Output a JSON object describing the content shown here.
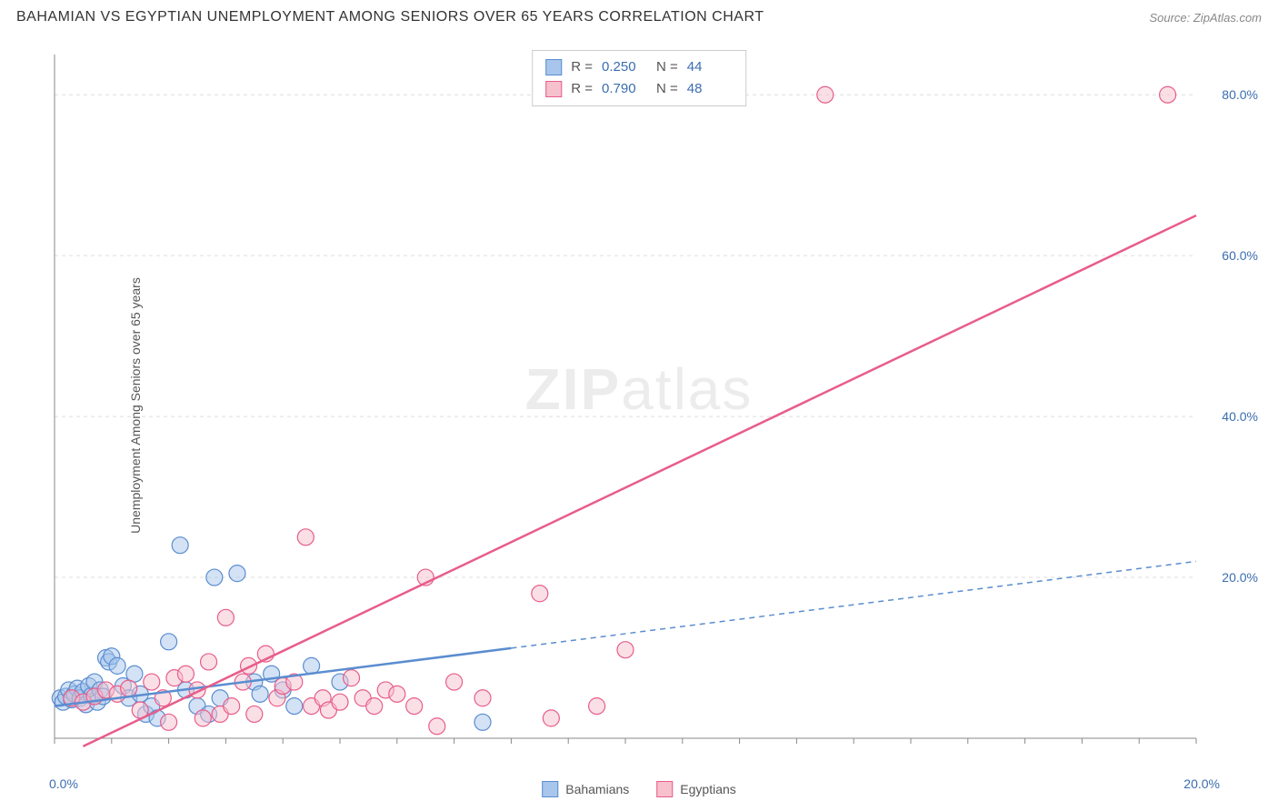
{
  "header": {
    "title": "BAHAMIAN VS EGYPTIAN UNEMPLOYMENT AMONG SENIORS OVER 65 YEARS CORRELATION CHART",
    "source": "Source: ZipAtlas.com"
  },
  "ylabel": "Unemployment Among Seniors over 65 years",
  "watermark": {
    "zip": "ZIP",
    "atlas": "atlas"
  },
  "chart": {
    "type": "scatter",
    "background_color": "#ffffff",
    "grid_color": "#dddddd",
    "axis_color": "#888888",
    "xlim": [
      0,
      20
    ],
    "ylim": [
      0,
      85
    ],
    "xticks": [
      0,
      20
    ],
    "xtick_labels": [
      "0.0%",
      "20.0%"
    ],
    "yticks": [
      20,
      40,
      60,
      80
    ],
    "ytick_labels": [
      "20.0%",
      "40.0%",
      "60.0%",
      "80.0%"
    ],
    "x_minor_ticks": [
      0,
      1,
      2,
      3,
      4,
      5,
      6,
      7,
      8,
      9,
      10,
      11,
      12,
      13,
      14,
      15,
      16,
      17,
      18,
      19,
      20
    ],
    "marker_radius": 9,
    "marker_opacity": 0.5,
    "line_width_solid": 2.5,
    "line_width_dashed": 1.5
  },
  "series": [
    {
      "name": "Bahamians",
      "fill_color": "#a8c6ec",
      "stroke_color": "#5a8dd0",
      "R": "0.250",
      "N": "44",
      "trend": {
        "x1": 0,
        "y1": 4,
        "x2": 20,
        "y2": 22,
        "solid_until_x": 8
      },
      "points": [
        [
          0.1,
          5
        ],
        [
          0.15,
          4.5
        ],
        [
          0.2,
          5.2
        ],
        [
          0.25,
          6
        ],
        [
          0.3,
          4.8
        ],
        [
          0.35,
          5.5
        ],
        [
          0.4,
          6.2
        ],
        [
          0.45,
          5
        ],
        [
          0.5,
          5.8
        ],
        [
          0.55,
          4.2
        ],
        [
          0.6,
          6.5
        ],
        [
          0.65,
          5.3
        ],
        [
          0.7,
          7
        ],
        [
          0.75,
          4.5
        ],
        [
          0.8,
          6
        ],
        [
          0.85,
          5.2
        ],
        [
          0.9,
          10
        ],
        [
          0.95,
          9.5
        ],
        [
          1,
          10.2
        ],
        [
          1.1,
          9
        ],
        [
          1.2,
          6.5
        ],
        [
          1.3,
          5
        ],
        [
          1.4,
          8
        ],
        [
          1.5,
          5.5
        ],
        [
          1.6,
          3
        ],
        [
          1.7,
          4
        ],
        [
          1.8,
          2.5
        ],
        [
          2,
          12
        ],
        [
          2.2,
          24
        ],
        [
          2.3,
          6
        ],
        [
          2.5,
          4
        ],
        [
          2.7,
          3
        ],
        [
          2.8,
          20
        ],
        [
          2.9,
          5
        ],
        [
          3.2,
          20.5
        ],
        [
          3.5,
          7
        ],
        [
          3.6,
          5.5
        ],
        [
          3.8,
          8
        ],
        [
          4,
          6
        ],
        [
          4.2,
          4
        ],
        [
          4.5,
          9
        ],
        [
          5,
          7
        ],
        [
          7.5,
          2
        ]
      ]
    },
    {
      "name": "Egyptians",
      "fill_color": "#f6c0cd",
      "stroke_color": "#e85d8a",
      "R": "0.790",
      "N": "48",
      "trend": {
        "x1": 0.5,
        "y1": -1,
        "x2": 20,
        "y2": 65,
        "solid_until_x": 20
      },
      "points": [
        [
          0.3,
          5
        ],
        [
          0.5,
          4.5
        ],
        [
          0.7,
          5.2
        ],
        [
          0.9,
          6
        ],
        [
          1.1,
          5.5
        ],
        [
          1.3,
          6.2
        ],
        [
          1.5,
          3.5
        ],
        [
          1.7,
          7
        ],
        [
          1.9,
          5
        ],
        [
          2,
          2
        ],
        [
          2.1,
          7.5
        ],
        [
          2.3,
          8
        ],
        [
          2.5,
          6
        ],
        [
          2.6,
          2.5
        ],
        [
          2.7,
          9.5
        ],
        [
          2.9,
          3
        ],
        [
          3,
          15
        ],
        [
          3.1,
          4
        ],
        [
          3.3,
          7
        ],
        [
          3.4,
          9
        ],
        [
          3.5,
          3
        ],
        [
          3.7,
          10.5
        ],
        [
          3.9,
          5
        ],
        [
          4,
          6.5
        ],
        [
          4.2,
          7
        ],
        [
          4.4,
          25
        ],
        [
          4.5,
          4
        ],
        [
          4.7,
          5
        ],
        [
          4.8,
          3.5
        ],
        [
          5,
          4.5
        ],
        [
          5.2,
          7.5
        ],
        [
          5.4,
          5
        ],
        [
          5.6,
          4
        ],
        [
          5.8,
          6
        ],
        [
          6,
          5.5
        ],
        [
          6.3,
          4
        ],
        [
          6.5,
          20
        ],
        [
          6.7,
          1.5
        ],
        [
          7,
          7
        ],
        [
          7.5,
          5
        ],
        [
          8.5,
          18
        ],
        [
          8.7,
          2.5
        ],
        [
          9.5,
          4
        ],
        [
          10,
          11
        ],
        [
          13.5,
          80
        ],
        [
          19.5,
          80
        ]
      ]
    }
  ],
  "top_legend": {
    "labels": {
      "R": "R =",
      "N": "N ="
    }
  },
  "bottom_legend": {
    "items": [
      "Bahamians",
      "Egyptians"
    ]
  }
}
